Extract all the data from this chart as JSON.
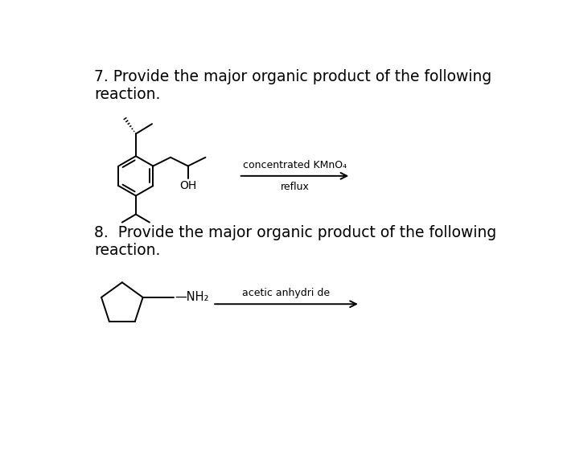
{
  "bg_color": "#ffffff",
  "text_color": "#000000",
  "q7_title": "7. Provide the major organic product of the following\nreaction.",
  "q8_title": "8.  Provide the major organic product of the following\nreaction.",
  "reagent7_top": "concentrated KMnO₄",
  "reagent7_bot": "reflux",
  "reagent8_top": "acetic anhydri de",
  "nh2_label": "—NH₂",
  "oh_label": "OH",
  "title_fontsize": 13.5,
  "line_color": "#000000",
  "line_width": 1.4
}
